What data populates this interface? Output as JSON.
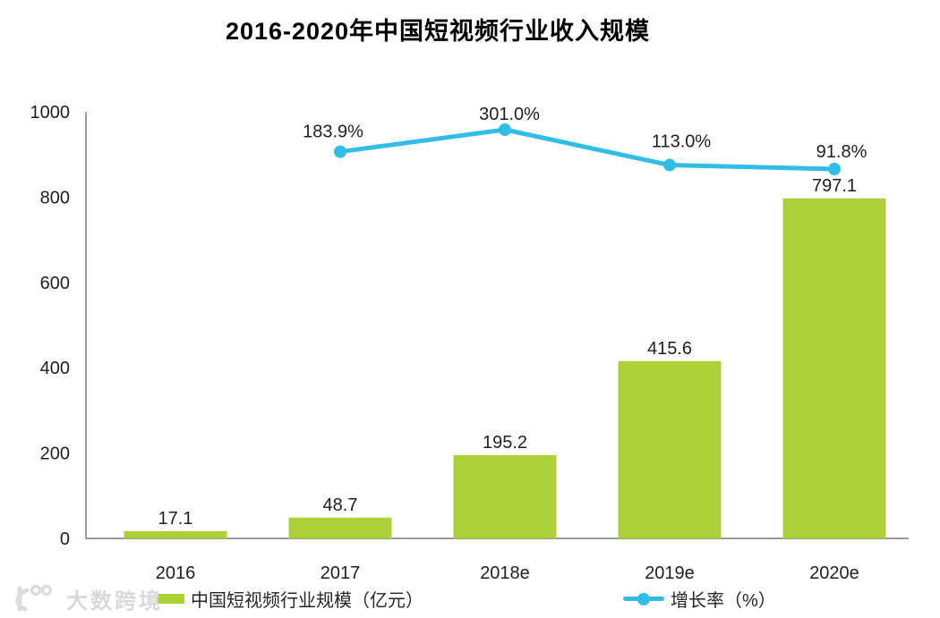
{
  "chart_data": {
    "type": "combo",
    "title": "2016-2020年中国短视频行业收入规模",
    "categories": [
      "2016",
      "2017",
      "2018e",
      "2019e",
      "2020e"
    ],
    "series": [
      {
        "name": "中国短视频行业规模（亿元）",
        "type": "bar",
        "color": "#acd138",
        "values": [
          17.1,
          48.7,
          195.2,
          415.6,
          797.1
        ],
        "labels": [
          "17.1",
          "48.7",
          "195.2",
          "415.6",
          "797.1"
        ]
      },
      {
        "name": "增长率（%）",
        "type": "line",
        "color": "#31bde6",
        "values": [
          null,
          183.9,
          301.0,
          113.0,
          91.8
        ],
        "labels": [
          "",
          "183.9%",
          "301.0%",
          "113.0%",
          "91.8%"
        ]
      }
    ],
    "y_axis": {
      "min": 0,
      "max": 1000,
      "ticks": [
        0,
        200,
        400,
        600,
        800,
        1000
      ]
    },
    "x_axis_label": "",
    "y_axis_label": "",
    "grid": false,
    "legend_position": "bottom",
    "text_color": "#1f1f1f",
    "axis_color": "#9b9b9b"
  },
  "watermark": {
    "text": "大数跨境"
  }
}
